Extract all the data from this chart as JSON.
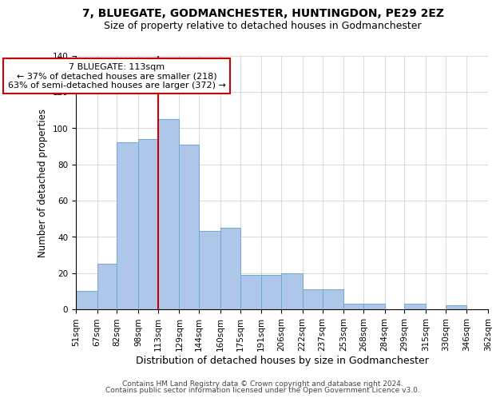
{
  "title": "7, BLUEGATE, GODMANCHESTER, HUNTINGDON, PE29 2EZ",
  "subtitle": "Size of property relative to detached houses in Godmanchester",
  "xlabel": "Distribution of detached houses by size in Godmanchester",
  "ylabel": "Number of detached properties",
  "bar_edges": [
    51,
    67,
    82,
    98,
    113,
    129,
    144,
    160,
    175,
    191,
    206,
    222,
    237,
    253,
    268,
    284,
    299,
    315,
    330,
    346,
    362
  ],
  "bar_heights": [
    10,
    25,
    92,
    94,
    105,
    91,
    43,
    45,
    19,
    19,
    20,
    11,
    11,
    3,
    3,
    0,
    3,
    0,
    2,
    0
  ],
  "bar_color": "#aec6e8",
  "bar_edge_color": "#6aaad4",
  "vline_x": 113,
  "vline_color": "#cc0000",
  "ylim": [
    0,
    140
  ],
  "annotation_title": "7 BLUEGATE: 113sqm",
  "annotation_line1": "← 37% of detached houses are smaller (218)",
  "annotation_line2": "63% of semi-detached houses are larger (372) →",
  "annotation_box_color": "#ffffff",
  "annotation_box_edge": "#cc0000",
  "footer_line1": "Contains HM Land Registry data © Crown copyright and database right 2024.",
  "footer_line2": "Contains public sector information licensed under the Open Government Licence v3.0.",
  "title_fontsize": 10,
  "subtitle_fontsize": 9,
  "xlabel_fontsize": 9,
  "ylabel_fontsize": 8.5,
  "tick_fontsize": 7.5,
  "annotation_fontsize": 8,
  "footer_fontsize": 6.5
}
